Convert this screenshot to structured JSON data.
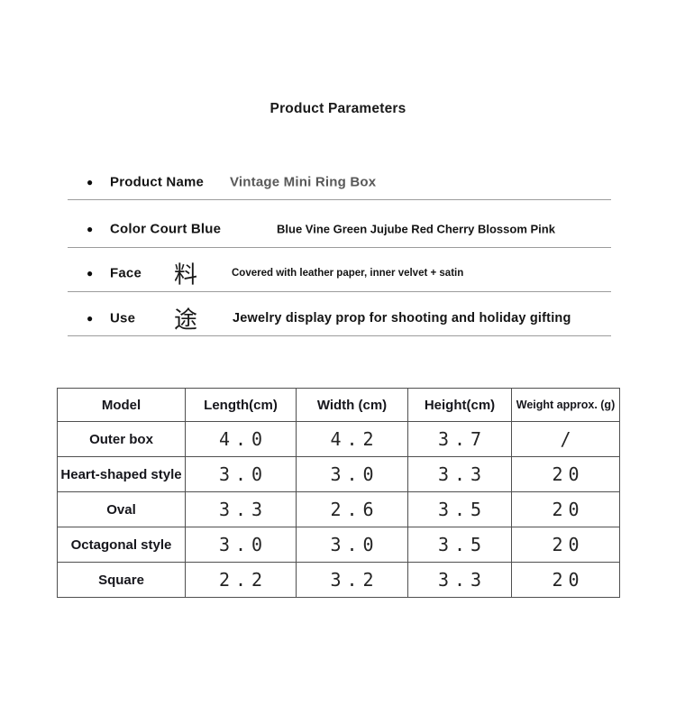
{
  "title": "Product Parameters",
  "icons": {
    "bullet": "●"
  },
  "colors": {
    "background": "#ffffff",
    "primary_text": "#141414",
    "muted_value_text": "#585858",
    "divider": "#9c9c9c",
    "table_border": "#4f4f4f"
  },
  "params": [
    {
      "label": "Product Name",
      "cjk": "",
      "value": "Vintage Mini Ring Box"
    },
    {
      "label": "Color Court Blue",
      "cjk": "",
      "value": "Blue Vine Green Jujube Red Cherry Blossom Pink"
    },
    {
      "label": "Face",
      "cjk": "料",
      "value": "Covered with leather paper, inner velvet + satin"
    },
    {
      "label": "Use",
      "cjk": "途",
      "value": "Jewelry display prop for shooting and holiday gifting"
    }
  ],
  "table": {
    "headers": [
      "Model",
      "Length(cm)",
      "Width (cm)",
      "Height(cm)",
      "Weight approx. (g)"
    ],
    "rows": [
      {
        "cells": [
          "Outer box",
          "4.0",
          "4.2",
          "3.7",
          "/"
        ]
      },
      {
        "cells": [
          "Heart-shaped style",
          "3.0",
          "3.0",
          "3.3",
          "20"
        ]
      },
      {
        "cells": [
          "Oval",
          "3.3",
          "2.6",
          "3.5",
          "20"
        ]
      },
      {
        "cells": [
          "Octagonal style",
          "3.0",
          "3.0",
          "3.5",
          "20"
        ]
      },
      {
        "cells": [
          "Square",
          "2.2",
          "3.2",
          "3.3",
          "20"
        ]
      }
    ]
  }
}
